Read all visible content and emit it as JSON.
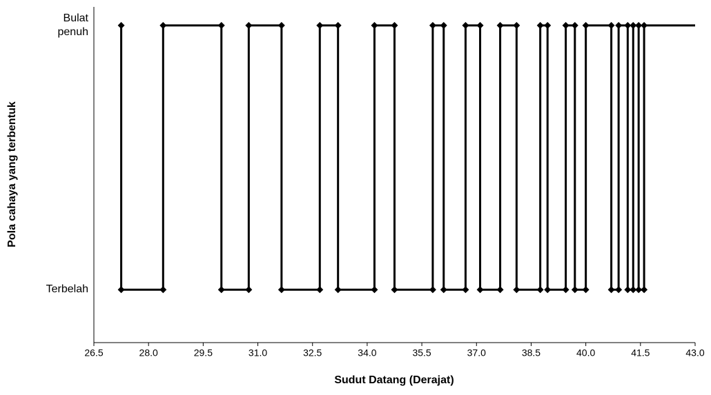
{
  "chart_data": {
    "type": "line",
    "xlabel": "Sudut Datang (Derajat)",
    "ylabel": "Pola cahaya yang terbentuk",
    "xlim": [
      26.5,
      43.0
    ],
    "xticks": [
      26.5,
      {
        "value": 28,
        "label": "28.0"
      },
      29.5,
      {
        "value": 31,
        "label": "31.0"
      },
      32.5,
      {
        "value": 34,
        "label": "34.0"
      },
      35.5,
      {
        "value": 37,
        "label": "37.0"
      },
      38.5,
      {
        "value": 40,
        "label": "40.0"
      },
      41.5,
      {
        "value": 43,
        "label": "43.0"
      }
    ],
    "ylim": [
      -0.2,
      1.07
    ],
    "yticks": [
      {
        "value": 0,
        "label": "Terbelah"
      },
      {
        "value": 1,
        "label": "Bulat penuh"
      }
    ],
    "color": "#000000",
    "x": [
      27.25,
      27.25,
      28.4,
      28.4,
      30.0,
      30.0,
      30.75,
      30.75,
      31.65,
      31.65,
      32.7,
      32.7,
      33.2,
      33.2,
      34.2,
      34.2,
      34.75,
      34.75,
      35.8,
      35.8,
      36.1,
      36.1,
      36.7,
      36.7,
      37.1,
      37.1,
      37.65,
      37.65,
      38.1,
      38.1,
      38.75,
      38.75,
      38.95,
      38.95,
      39.45,
      39.45,
      39.7,
      39.7,
      40.0,
      40.0,
      40.7,
      40.7,
      40.9,
      40.9,
      41.15,
      41.15,
      41.3,
      41.3,
      41.45,
      41.45,
      41.6,
      41.6,
      43.0
    ],
    "values": [
      1,
      0,
      0,
      1,
      1,
      0,
      0,
      1,
      1,
      0,
      0,
      1,
      1,
      0,
      0,
      1,
      1,
      0,
      0,
      1,
      1,
      0,
      0,
      1,
      1,
      0,
      0,
      1,
      1,
      0,
      0,
      1,
      1,
      0,
      0,
      1,
      1,
      0,
      0,
      1,
      1,
      0,
      0,
      1,
      1,
      0,
      0,
      1,
      1,
      0,
      0,
      1,
      1
    ]
  }
}
